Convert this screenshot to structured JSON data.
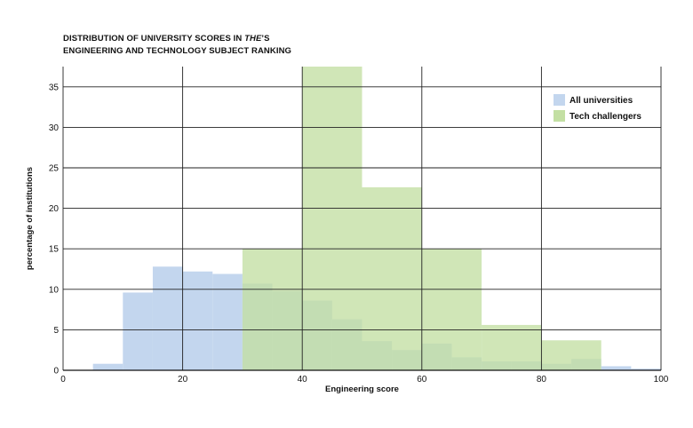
{
  "chart_data": {
    "type": "bar",
    "title_line1_prefix": "DISTRIBUTION OF UNIVERSITY SCORES IN ",
    "title_line1_italic": "THE",
    "title_line1_suffix": "’S",
    "title_line2": "ENGINEERING AND TECHNOLOGY SUBJECT RANKING",
    "xlabel": "Engineering score",
    "ylabel": "percentage of institutions",
    "xlim": [
      0,
      100
    ],
    "ylim": [
      0,
      37.5
    ],
    "x_ticks": [
      "0",
      "20",
      "40",
      "60",
      "80",
      "100"
    ],
    "y_ticks": [
      "0",
      "5",
      "10",
      "15",
      "20",
      "25",
      "30",
      "35"
    ],
    "grid": true,
    "legend_position": "top-right",
    "series": [
      {
        "name": "All universities",
        "color": "#c3d6ee",
        "bins": [
          {
            "x0": 5,
            "x1": 10,
            "value": 0.8
          },
          {
            "x0": 10,
            "x1": 15,
            "value": 9.6
          },
          {
            "x0": 15,
            "x1": 20,
            "value": 12.8
          },
          {
            "x0": 20,
            "x1": 25,
            "value": 12.2
          },
          {
            "x0": 25,
            "x1": 30,
            "value": 11.9
          },
          {
            "x0": 30,
            "x1": 35,
            "value": 10.7
          },
          {
            "x0": 35,
            "x1": 40,
            "value": 9.8
          },
          {
            "x0": 40,
            "x1": 45,
            "value": 8.6
          },
          {
            "x0": 45,
            "x1": 50,
            "value": 6.3
          },
          {
            "x0": 50,
            "x1": 55,
            "value": 3.6
          },
          {
            "x0": 55,
            "x1": 60,
            "value": 2.5
          },
          {
            "x0": 60,
            "x1": 65,
            "value": 3.3
          },
          {
            "x0": 65,
            "x1": 70,
            "value": 1.6
          },
          {
            "x0": 70,
            "x1": 75,
            "value": 1.1
          },
          {
            "x0": 75,
            "x1": 80,
            "value": 1.1
          },
          {
            "x0": 80,
            "x1": 85,
            "value": 0.8
          },
          {
            "x0": 85,
            "x1": 90,
            "value": 1.4
          },
          {
            "x0": 90,
            "x1": 95,
            "value": 0.5
          },
          {
            "x0": 95,
            "x1": 100,
            "value": 0.2
          }
        ]
      },
      {
        "name": "Tech challengers",
        "color": "#c3dfa3",
        "bins": [
          {
            "x0": 30,
            "x1": 40,
            "value": 15.0
          },
          {
            "x0": 40,
            "x1": 50,
            "value": 37.5
          },
          {
            "x0": 50,
            "x1": 60,
            "value": 22.6
          },
          {
            "x0": 60,
            "x1": 70,
            "value": 15.0
          },
          {
            "x0": 70,
            "x1": 80,
            "value": 5.6
          },
          {
            "x0": 80,
            "x1": 90,
            "value": 3.7
          }
        ]
      }
    ]
  }
}
